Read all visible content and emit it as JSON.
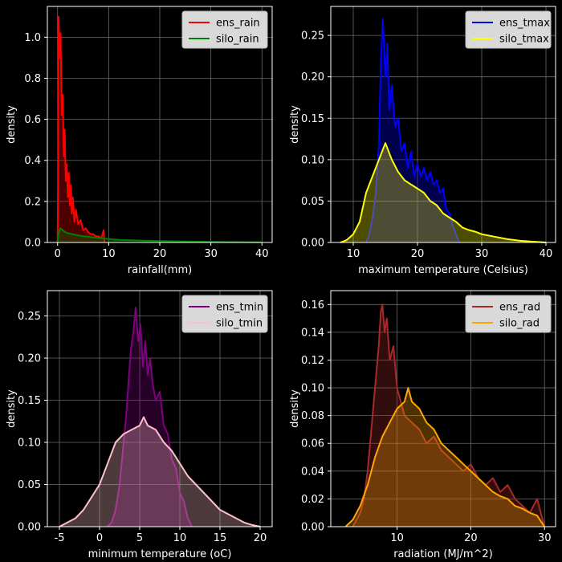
{
  "chart_data": [
    {
      "type": "area",
      "xlabel": "rainfall(mm)",
      "ylabel": "density",
      "xlim": [
        -2,
        42
      ],
      "ylim": [
        0,
        1.15
      ],
      "xticks": [
        0,
        10,
        20,
        30,
        40
      ],
      "yticks": [
        0.0,
        0.2,
        0.4,
        0.6,
        0.8,
        1.0
      ],
      "ytick_labels": [
        "0.0",
        "0.2",
        "0.4",
        "0.6",
        "0.8",
        "1.0"
      ],
      "grid": true,
      "legend_position": "top-right",
      "series": [
        {
          "name": "ens_rain",
          "color": "#ff0000",
          "points": [
            [
              0,
              0
            ],
            [
              0.1,
              0.3
            ],
            [
              0.2,
              1.1
            ],
            [
              0.4,
              0.9
            ],
            [
              0.6,
              1.02
            ],
            [
              0.8,
              0.62
            ],
            [
              1.0,
              0.72
            ],
            [
              1.2,
              0.42
            ],
            [
              1.4,
              0.55
            ],
            [
              1.6,
              0.3
            ],
            [
              1.8,
              0.38
            ],
            [
              2.0,
              0.22
            ],
            [
              2.2,
              0.34
            ],
            [
              2.4,
              0.18
            ],
            [
              2.6,
              0.28
            ],
            [
              2.8,
              0.14
            ],
            [
              3.0,
              0.22
            ],
            [
              3.3,
              0.1
            ],
            [
              3.6,
              0.16
            ],
            [
              4.0,
              0.09
            ],
            [
              4.5,
              0.11
            ],
            [
              5.0,
              0.06
            ],
            [
              5.5,
              0.07
            ],
            [
              6.0,
              0.05
            ],
            [
              6.5,
              0.04
            ],
            [
              7.0,
              0.04
            ],
            [
              7.5,
              0.03
            ],
            [
              8.0,
              0.03
            ],
            [
              8.5,
              0.02
            ],
            [
              8.8,
              0.04
            ],
            [
              9.0,
              0.06
            ],
            [
              9.2,
              0.0
            ]
          ]
        },
        {
          "name": "silo_rain",
          "color": "#008000",
          "points": [
            [
              0,
              0
            ],
            [
              0.2,
              0.04
            ],
            [
              0.5,
              0.07
            ],
            [
              1.0,
              0.06
            ],
            [
              1.5,
              0.05
            ],
            [
              2.0,
              0.045
            ],
            [
              3.0,
              0.04
            ],
            [
              4.0,
              0.035
            ],
            [
              5.0,
              0.03
            ],
            [
              6.0,
              0.028
            ],
            [
              7.0,
              0.025
            ],
            [
              8.0,
              0.022
            ],
            [
              9.0,
              0.02
            ],
            [
              10.0,
              0.017
            ],
            [
              12.0,
              0.013
            ],
            [
              15.0,
              0.01
            ],
            [
              20.0,
              0.007
            ],
            [
              25.0,
              0.005
            ],
            [
              30.0,
              0.003
            ],
            [
              35.0,
              0.002
            ],
            [
              40.0,
              0.001
            ]
          ]
        }
      ]
    },
    {
      "type": "area",
      "xlabel": "maximum temperature (Celsius)",
      "ylabel": "density",
      "xlim": [
        6.5,
        41.5
      ],
      "ylim": [
        0,
        0.285
      ],
      "xticks": [
        10,
        20,
        30,
        40
      ],
      "yticks": [
        0.0,
        0.05,
        0.1,
        0.15,
        0.2,
        0.25
      ],
      "ytick_labels": [
        "0.00",
        "0.05",
        "0.10",
        "0.15",
        "0.20",
        "0.25"
      ],
      "grid": true,
      "legend_position": "top-right",
      "series": [
        {
          "name": "ens_tmax",
          "color": "#0000ff",
          "points": [
            [
              12,
              0
            ],
            [
              12.5,
              0.01
            ],
            [
              13,
              0.03
            ],
            [
              13.5,
              0.06
            ],
            [
              14,
              0.12
            ],
            [
              14.3,
              0.22
            ],
            [
              14.6,
              0.27
            ],
            [
              15,
              0.2
            ],
            [
              15.3,
              0.24
            ],
            [
              15.6,
              0.16
            ],
            [
              16,
              0.19
            ],
            [
              16.5,
              0.14
            ],
            [
              17,
              0.15
            ],
            [
              17.5,
              0.11
            ],
            [
              18,
              0.12
            ],
            [
              18.5,
              0.09
            ],
            [
              19,
              0.11
            ],
            [
              19.5,
              0.08
            ],
            [
              20,
              0.095
            ],
            [
              20.5,
              0.08
            ],
            [
              21,
              0.09
            ],
            [
              21.5,
              0.075
            ],
            [
              22,
              0.085
            ],
            [
              22.5,
              0.07
            ],
            [
              23,
              0.075
            ],
            [
              23.5,
              0.06
            ],
            [
              24,
              0.065
            ],
            [
              24.5,
              0.04
            ],
            [
              25,
              0.035
            ],
            [
              25.5,
              0.02
            ],
            [
              26,
              0.01
            ],
            [
              26.5,
              0.0
            ]
          ]
        },
        {
          "name": "silo_tmax",
          "color": "#ffff00",
          "points": [
            [
              8,
              0
            ],
            [
              9,
              0.003
            ],
            [
              10,
              0.01
            ],
            [
              11,
              0.025
            ],
            [
              12,
              0.06
            ],
            [
              13,
              0.08
            ],
            [
              14,
              0.1
            ],
            [
              15,
              0.12
            ],
            [
              16,
              0.1
            ],
            [
              17,
              0.085
            ],
            [
              18,
              0.075
            ],
            [
              19,
              0.07
            ],
            [
              20,
              0.065
            ],
            [
              21,
              0.06
            ],
            [
              22,
              0.05
            ],
            [
              23,
              0.045
            ],
            [
              24,
              0.035
            ],
            [
              25,
              0.03
            ],
            [
              26,
              0.025
            ],
            [
              27,
              0.018
            ],
            [
              28,
              0.015
            ],
            [
              29,
              0.013
            ],
            [
              30,
              0.01
            ],
            [
              32,
              0.007
            ],
            [
              34,
              0.004
            ],
            [
              36,
              0.002
            ],
            [
              38,
              0.001
            ],
            [
              40,
              0
            ]
          ]
        }
      ]
    },
    {
      "type": "area",
      "xlabel": "minimum temperature (oC)",
      "ylabel": "density",
      "xlim": [
        -6.5,
        21.5
      ],
      "ylim": [
        0,
        0.28
      ],
      "xticks": [
        -5,
        0,
        5,
        10,
        15,
        20
      ],
      "yticks": [
        0.0,
        0.05,
        0.1,
        0.15,
        0.2,
        0.25
      ],
      "ytick_labels": [
        "0.00",
        "0.05",
        "0.10",
        "0.15",
        "0.20",
        "0.25"
      ],
      "grid": true,
      "legend_position": "top-right",
      "series": [
        {
          "name": "ens_tmin",
          "color": "#800080",
          "points": [
            [
              1,
              0
            ],
            [
              1.5,
              0.005
            ],
            [
              2,
              0.02
            ],
            [
              2.5,
              0.05
            ],
            [
              3,
              0.1
            ],
            [
              3.3,
              0.13
            ],
            [
              3.6,
              0.17
            ],
            [
              3.9,
              0.21
            ],
            [
              4.2,
              0.23
            ],
            [
              4.5,
              0.26
            ],
            [
              4.8,
              0.22
            ],
            [
              5.1,
              0.24
            ],
            [
              5.4,
              0.19
            ],
            [
              5.7,
              0.22
            ],
            [
              6.0,
              0.18
            ],
            [
              6.3,
              0.2
            ],
            [
              6.6,
              0.17
            ],
            [
              7.0,
              0.15
            ],
            [
              7.5,
              0.16
            ],
            [
              8.0,
              0.12
            ],
            [
              8.5,
              0.11
            ],
            [
              9.0,
              0.08
            ],
            [
              9.5,
              0.07
            ],
            [
              10.0,
              0.04
            ],
            [
              10.5,
              0.03
            ],
            [
              11.0,
              0.01
            ],
            [
              11.5,
              0.0
            ]
          ]
        },
        {
          "name": "silo_tmin",
          "color": "#ffc0cb",
          "points": [
            [
              -5,
              0
            ],
            [
              -4,
              0.005
            ],
            [
              -3,
              0.01
            ],
            [
              -2,
              0.02
            ],
            [
              -1,
              0.035
            ],
            [
              0,
              0.05
            ],
            [
              1,
              0.075
            ],
            [
              2,
              0.1
            ],
            [
              3,
              0.11
            ],
            [
              4,
              0.115
            ],
            [
              5,
              0.12
            ],
            [
              5.5,
              0.13
            ],
            [
              6,
              0.12
            ],
            [
              7,
              0.115
            ],
            [
              8,
              0.1
            ],
            [
              9,
              0.09
            ],
            [
              10,
              0.075
            ],
            [
              11,
              0.06
            ],
            [
              12,
              0.05
            ],
            [
              13,
              0.04
            ],
            [
              14,
              0.03
            ],
            [
              15,
              0.02
            ],
            [
              16,
              0.015
            ],
            [
              17,
              0.01
            ],
            [
              18,
              0.005
            ],
            [
              19,
              0.002
            ],
            [
              20,
              0
            ]
          ]
        }
      ]
    },
    {
      "type": "area",
      "xlabel": "radiation (MJ/m^2)",
      "ylabel": "density",
      "xlim": [
        1,
        31.5
      ],
      "ylim": [
        0,
        0.17
      ],
      "xticks": [
        10,
        20,
        30
      ],
      "yticks": [
        0.0,
        0.02,
        0.04,
        0.06,
        0.08,
        0.1,
        0.12,
        0.14,
        0.16
      ],
      "ytick_labels": [
        "0.00",
        "0.02",
        "0.04",
        "0.06",
        "0.08",
        "0.10",
        "0.12",
        "0.14",
        "0.16"
      ],
      "grid": true,
      "legend_position": "top-right",
      "series": [
        {
          "name": "ens_rad",
          "color": "#a52a2a",
          "points": [
            [
              4,
              0
            ],
            [
              4.5,
              0.005
            ],
            [
              5,
              0.01
            ],
            [
              5.5,
              0.02
            ],
            [
              6,
              0.04
            ],
            [
              6.5,
              0.07
            ],
            [
              7,
              0.1
            ],
            [
              7.5,
              0.13
            ],
            [
              7.8,
              0.155
            ],
            [
              8.0,
              0.16
            ],
            [
              8.3,
              0.14
            ],
            [
              8.6,
              0.15
            ],
            [
              9.0,
              0.12
            ],
            [
              9.5,
              0.13
            ],
            [
              10,
              0.1
            ],
            [
              10.5,
              0.09
            ],
            [
              11,
              0.08
            ],
            [
              12,
              0.075
            ],
            [
              13,
              0.07
            ],
            [
              14,
              0.06
            ],
            [
              15,
              0.065
            ],
            [
              16,
              0.055
            ],
            [
              17,
              0.05
            ],
            [
              18,
              0.045
            ],
            [
              19,
              0.04
            ],
            [
              20,
              0.045
            ],
            [
              21,
              0.035
            ],
            [
              22,
              0.03
            ],
            [
              23,
              0.035
            ],
            [
              24,
              0.025
            ],
            [
              25,
              0.03
            ],
            [
              26,
              0.02
            ],
            [
              27,
              0.015
            ],
            [
              28,
              0.01
            ],
            [
              29,
              0.02
            ],
            [
              30,
              0.0
            ]
          ]
        },
        {
          "name": "silo_rad",
          "color": "#ffa500",
          "points": [
            [
              3,
              0
            ],
            [
              4,
              0.005
            ],
            [
              5,
              0.015
            ],
            [
              6,
              0.03
            ],
            [
              7,
              0.05
            ],
            [
              8,
              0.065
            ],
            [
              9,
              0.075
            ],
            [
              10,
              0.085
            ],
            [
              11,
              0.09
            ],
            [
              11.5,
              0.1
            ],
            [
              12,
              0.09
            ],
            [
              13,
              0.085
            ],
            [
              14,
              0.075
            ],
            [
              15,
              0.07
            ],
            [
              16,
              0.06
            ],
            [
              17,
              0.055
            ],
            [
              18,
              0.05
            ],
            [
              19,
              0.045
            ],
            [
              20,
              0.04
            ],
            [
              21,
              0.035
            ],
            [
              22,
              0.03
            ],
            [
              23,
              0.025
            ],
            [
              24,
              0.022
            ],
            [
              25,
              0.02
            ],
            [
              26,
              0.015
            ],
            [
              27,
              0.013
            ],
            [
              28,
              0.01
            ],
            [
              29,
              0.008
            ],
            [
              30,
              0.0
            ]
          ]
        }
      ]
    }
  ]
}
